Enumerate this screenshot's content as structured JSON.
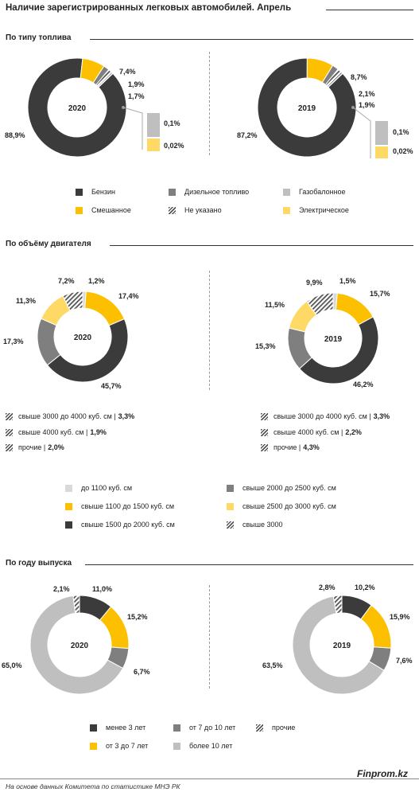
{
  "title": "Наличие зарегистрированных легковых автомобилей. Апрель",
  "sections": {
    "fuel": "По типу топлива",
    "engine": "По объёму двигателя",
    "year": "По году выпуска"
  },
  "colors": {
    "dark": "#3b3b3b",
    "yellow": "#fcc000",
    "mid_gray": "#7f7f7f",
    "light_gray": "#bfbfbf",
    "pale_yellow": "#ffd966",
    "lighter_gray": "#d9d9d9"
  },
  "chart_data": [
    {
      "type": "pie",
      "variant": "donut",
      "center_label": "2020",
      "slices": [
        {
          "name": "Бензин",
          "value": 88.9,
          "label": "88,9%"
        },
        {
          "name": "Смешанное",
          "value": 7.4,
          "label": "7,4%"
        },
        {
          "name": "Дизельное топливо",
          "value": 1.9,
          "label": "1,9%"
        },
        {
          "name": "Не указано",
          "value": 1.7,
          "label": "1,7%"
        },
        {
          "name": "Газобалонное",
          "value": 0.1,
          "label": "0,1%"
        },
        {
          "name": "Электрическое",
          "value": 0.02,
          "label": "0,02%"
        }
      ]
    },
    {
      "type": "pie",
      "variant": "donut",
      "center_label": "2019",
      "slices": [
        {
          "name": "Бензин",
          "value": 87.2,
          "label": "87,2%"
        },
        {
          "name": "Смешанное",
          "value": 8.7,
          "label": "8,7%"
        },
        {
          "name": "Дизельное топливо",
          "value": 2.1,
          "label": "2,1%"
        },
        {
          "name": "Не указано",
          "value": 1.9,
          "label": "1,9%"
        },
        {
          "name": "Газобалонное",
          "value": 0.1,
          "label": "0,1%"
        },
        {
          "name": "Электрическое",
          "value": 0.02,
          "label": "0,02%"
        }
      ]
    },
    {
      "type": "pie",
      "variant": "donut",
      "center_label": "2020",
      "slices": [
        {
          "name": "до 1100 куб. см",
          "value": 1.2,
          "label": "1,2%"
        },
        {
          "name": "свыше 1100 до 1500 куб. см",
          "value": 17.4,
          "label": "17,4%"
        },
        {
          "name": "свыше 1500 до 2000 куб. см",
          "value": 45.7,
          "label": "45,7%"
        },
        {
          "name": "свыше 2000 до 2500 куб. см",
          "value": 17.3,
          "label": "17,3%"
        },
        {
          "name": "свыше 2500 до 3000 куб. см",
          "value": 11.3,
          "label": "11,3%"
        },
        {
          "name": "свыше 3000",
          "value": 7.2,
          "label": "7,2%"
        }
      ],
      "breakdown": [
        {
          "label": "свыше 3000 до 4000 куб. см |",
          "value": "3,3%"
        },
        {
          "label": "свыше 4000 куб. см |",
          "value": "1,9%"
        },
        {
          "label": "прочие |",
          "value": "2,0%"
        }
      ]
    },
    {
      "type": "pie",
      "variant": "donut",
      "center_label": "2019",
      "slices": [
        {
          "name": "до 1100 куб. см",
          "value": 1.5,
          "label": "1,5%"
        },
        {
          "name": "свыше 1100 до 1500 куб. см",
          "value": 15.7,
          "label": "15,7%"
        },
        {
          "name": "свыше 1500 до 2000 куб. см",
          "value": 46.2,
          "label": "46,2%"
        },
        {
          "name": "свыше 2000 до 2500 куб. см",
          "value": 15.3,
          "label": "15,3%"
        },
        {
          "name": "свыше 2500 до 3000 куб. см",
          "value": 11.5,
          "label": "11,5%"
        },
        {
          "name": "свыше 3000",
          "value": 9.9,
          "label": "9,9%"
        }
      ],
      "breakdown": [
        {
          "label": "свыше 3000 до 4000 куб. см |",
          "value": "3,3%"
        },
        {
          "label": "свыше 4000 куб. см |",
          "value": "2,2%"
        },
        {
          "label": "прочие |",
          "value": "4,3%"
        }
      ]
    },
    {
      "type": "pie",
      "variant": "donut",
      "center_label": "2020",
      "slices": [
        {
          "name": "менее 3 лет",
          "value": 11.0,
          "label": "11,0%"
        },
        {
          "name": "от 3 до 7 лет",
          "value": 15.2,
          "label": "15,2%"
        },
        {
          "name": "от 7 до 10 лет",
          "value": 6.7,
          "label": "6,7%"
        },
        {
          "name": "более 10 лет",
          "value": 65.0,
          "label": "65,0%"
        },
        {
          "name": "прочие",
          "value": 2.1,
          "label": "2,1%"
        }
      ]
    },
    {
      "type": "pie",
      "variant": "donut",
      "center_label": "2019",
      "slices": [
        {
          "name": "менее 3 лет",
          "value": 10.2,
          "label": "10,2%"
        },
        {
          "name": "от 3 до 7 лет",
          "value": 15.9,
          "label": "15,9%"
        },
        {
          "name": "от 7 до 10 лет",
          "value": 7.6,
          "label": "7,6%"
        },
        {
          "name": "более 10 лет",
          "value": 63.5,
          "label": "63,5%"
        },
        {
          "name": "прочие",
          "value": 2.8,
          "label": "2,8%"
        }
      ]
    }
  ],
  "legends": {
    "fuel": [
      {
        "label": "Бензин",
        "swatch": "dark"
      },
      {
        "label": "Дизельное топливо",
        "swatch": "mid_gray"
      },
      {
        "label": "Газобалонное",
        "swatch": "light_gray"
      },
      {
        "label": "Смешанное",
        "swatch": "yellow"
      },
      {
        "label": "Не указано",
        "swatch": "hatch"
      },
      {
        "label": "Электрическое",
        "swatch": "pale_yellow"
      }
    ],
    "engine": [
      {
        "label": "до 1100 куб. см",
        "swatch": "lighter_gray"
      },
      {
        "label": "свыше 2000 до 2500 куб. см",
        "swatch": "mid_gray"
      },
      {
        "label": "свыше 1100 до 1500 куб. см",
        "swatch": "yellow"
      },
      {
        "label": "свыше 2500 до 3000 куб. см",
        "swatch": "pale_yellow"
      },
      {
        "label": "свыше 1500 до 2000 куб. см",
        "swatch": "dark"
      },
      {
        "label": "свыше 3000",
        "swatch": "hatch"
      }
    ],
    "year": [
      {
        "label": "менее 3 лет",
        "swatch": "dark"
      },
      {
        "label": "от 7 до 10 лет",
        "swatch": "mid_gray"
      },
      {
        "label": "прочие",
        "swatch": "hatch"
      },
      {
        "label": "от 3 до 7 лет",
        "swatch": "yellow"
      },
      {
        "label": "более 10 лет",
        "swatch": "light_gray"
      }
    ]
  },
  "footer": {
    "brand": "Finprom.kz",
    "source": "На основе данных Комитета по статистике МНЭ РК"
  }
}
